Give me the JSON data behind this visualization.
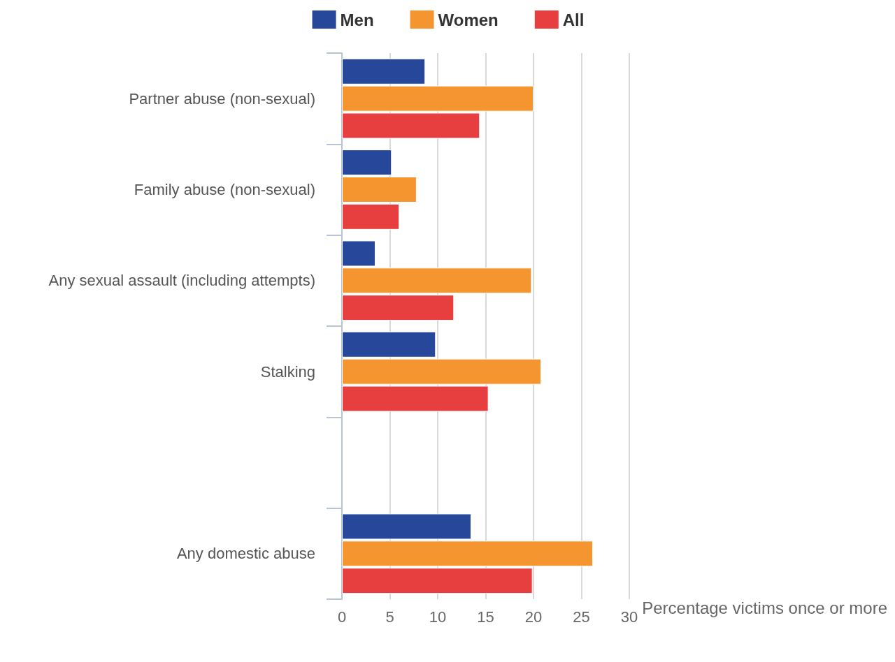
{
  "chart_data": {
    "type": "bar",
    "orientation": "horizontal",
    "xlabel": "Percentage victims once or more",
    "categories": [
      "Partner abuse (non-sexual)",
      "Family abuse (non-sexual)",
      "Any sexual assault (including attempts)",
      "Stalking",
      null,
      "Any domestic abuse"
    ],
    "series": [
      {
        "name": "Men",
        "color": "#26479a",
        "values": [
          8.7,
          5.2,
          3.5,
          9.8,
          null,
          13.5
        ]
      },
      {
        "name": "Women",
        "color": "#f4952f",
        "values": [
          20.0,
          7.8,
          19.8,
          20.8,
          null,
          26.2
        ]
      },
      {
        "name": "All",
        "color": "#e73f3f",
        "values": [
          14.4,
          6.0,
          11.7,
          15.3,
          null,
          19.9
        ]
      }
    ],
    "xlim": [
      0,
      30
    ],
    "xticks": [
      0,
      5,
      10,
      15,
      20,
      25,
      30
    ],
    "grid": "x",
    "legend": "top"
  }
}
